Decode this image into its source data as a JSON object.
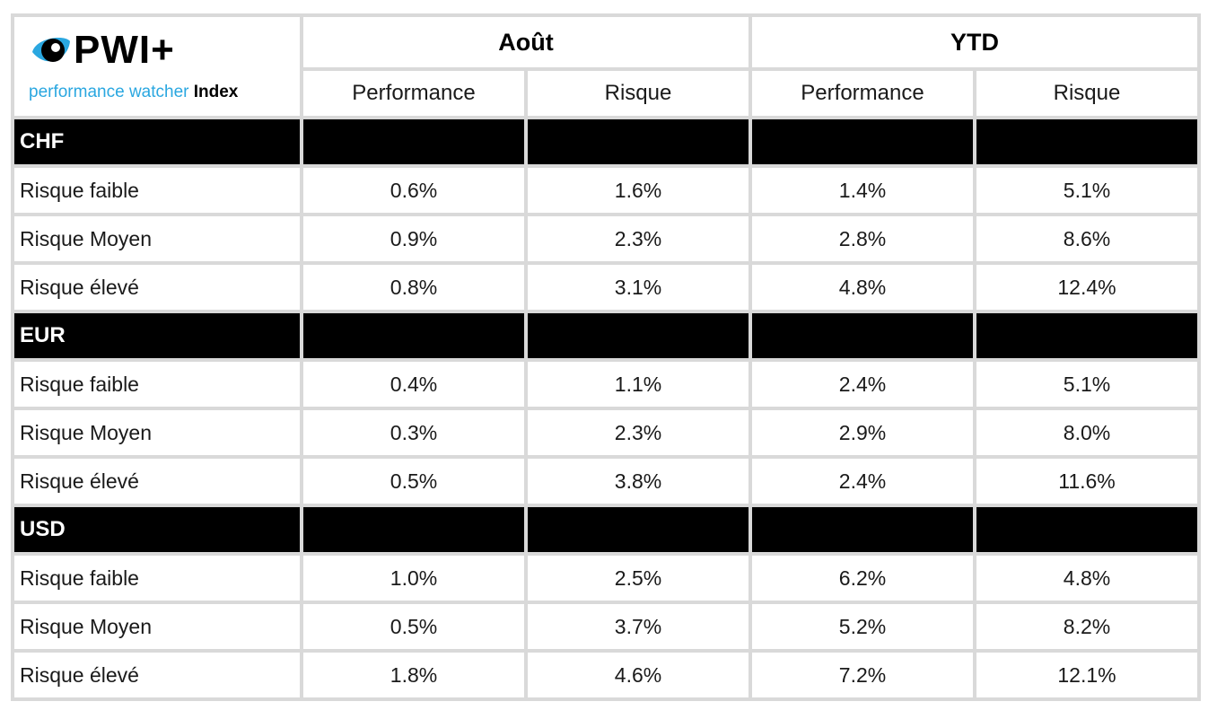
{
  "logo": {
    "title": "PWI+",
    "subtitle_part1": "performance watcher",
    "subtitle_part2": " Index",
    "accent": "#2aa7e0"
  },
  "header": {
    "groups": [
      "Août",
      "YTD"
    ],
    "subheaders": [
      "Performance",
      "Risque",
      "Performance",
      "Risque"
    ]
  },
  "chart_data": {
    "type": "table",
    "columns": [
      "Août Performance",
      "Août Risque",
      "YTD Performance",
      "YTD Risque"
    ],
    "sections": [
      {
        "name": "CHF",
        "rows": [
          {
            "label": "Risque faible",
            "values": [
              "0.6%",
              "1.6%",
              "1.4%",
              "5.1%"
            ]
          },
          {
            "label": "Risque Moyen",
            "values": [
              "0.9%",
              "2.3%",
              "2.8%",
              "8.6%"
            ]
          },
          {
            "label": "Risque élevé",
            "values": [
              "0.8%",
              "3.1%",
              "4.8%",
              "12.4%"
            ]
          }
        ]
      },
      {
        "name": "EUR",
        "rows": [
          {
            "label": "Risque faible",
            "values": [
              "0.4%",
              "1.1%",
              "2.4%",
              "5.1%"
            ]
          },
          {
            "label": "Risque Moyen",
            "values": [
              "0.3%",
              "2.3%",
              "2.9%",
              "8.0%"
            ]
          },
          {
            "label": "Risque élevé",
            "values": [
              "0.5%",
              "3.8%",
              "2.4%",
              "11.6%"
            ]
          }
        ]
      },
      {
        "name": "USD",
        "rows": [
          {
            "label": "Risque faible",
            "values": [
              "1.0%",
              "2.5%",
              "6.2%",
              "4.8%"
            ]
          },
          {
            "label": "Risque Moyen",
            "values": [
              "0.5%",
              "3.7%",
              "5.2%",
              "8.2%"
            ]
          },
          {
            "label": "Risque élevé",
            "values": [
              "1.8%",
              "4.6%",
              "7.2%",
              "12.1%"
            ]
          }
        ]
      }
    ]
  }
}
